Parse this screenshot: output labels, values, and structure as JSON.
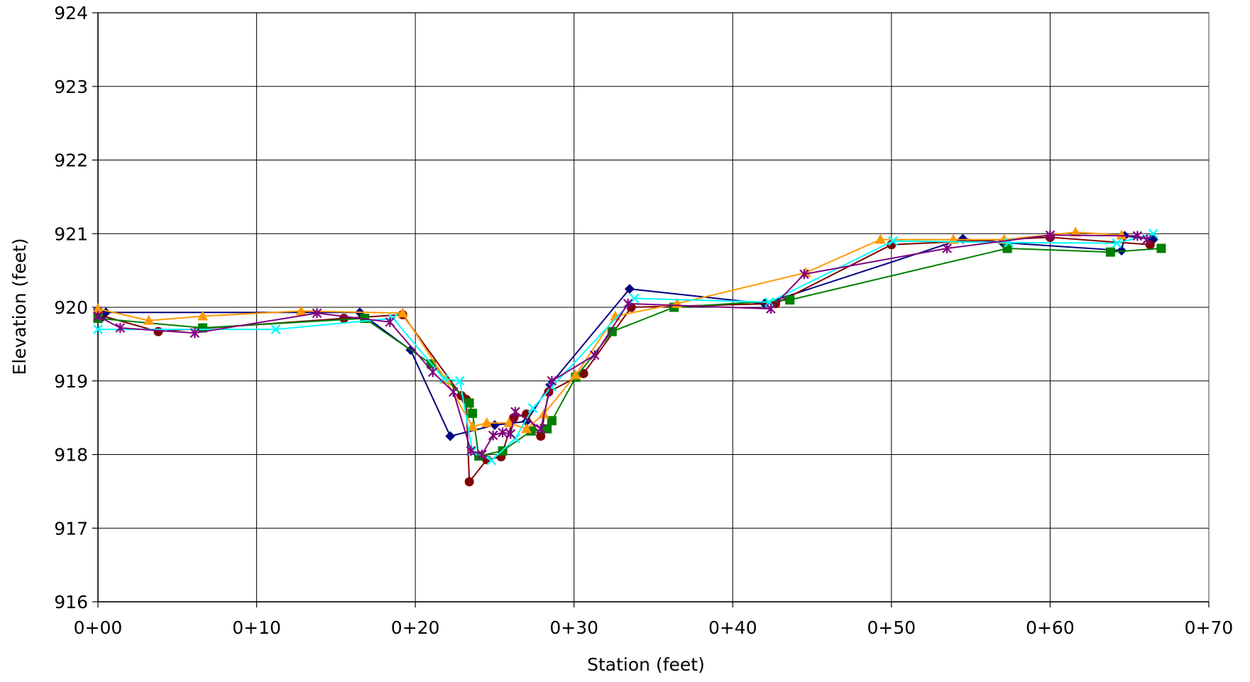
{
  "chart_data": {
    "type": "line",
    "title": "",
    "xlabel": "Station (feet)",
    "ylabel": "Elevation (feet)",
    "xlim": [
      0,
      70
    ],
    "ylim": [
      916,
      924
    ],
    "x_ticks": [
      0,
      10,
      20,
      30,
      40,
      50,
      60,
      70
    ],
    "x_tick_labels": [
      "0+00",
      "0+10",
      "0+20",
      "0+30",
      "0+40",
      "0+50",
      "0+60",
      "0+70"
    ],
    "y_ticks": [
      916,
      917,
      918,
      919,
      920,
      921,
      922,
      923,
      924
    ],
    "y_tick_labels": [
      "916",
      "917",
      "918",
      "919",
      "920",
      "921",
      "922",
      "923",
      "924"
    ],
    "grid": true,
    "legend": "none",
    "series": [
      {
        "color": "#000080",
        "marker": "diamond",
        "points": [
          [
            0,
            919.97
          ],
          [
            0.2,
            919.85
          ],
          [
            0.5,
            919.93
          ],
          [
            16.5,
            919.93
          ],
          [
            19.7,
            919.42
          ],
          [
            22.2,
            918.25
          ],
          [
            25,
            918.4
          ],
          [
            27,
            918.45
          ],
          [
            28.5,
            918.95
          ],
          [
            33.5,
            920.25
          ],
          [
            42,
            920.05
          ],
          [
            54.5,
            920.93
          ],
          [
            57,
            920.88
          ],
          [
            64.5,
            920.77
          ],
          [
            64.7,
            920.97
          ],
          [
            66.5,
            920.92
          ]
        ]
      },
      {
        "color": "#800000",
        "marker": "circle",
        "points": [
          [
            0,
            919.9
          ],
          [
            3.8,
            919.67
          ],
          [
            15.5,
            919.85
          ],
          [
            19.2,
            919.9
          ],
          [
            22.9,
            918.8
          ],
          [
            23.2,
            918.75
          ],
          [
            23.4,
            917.63
          ],
          [
            24.5,
            917.93
          ],
          [
            25.4,
            917.97
          ],
          [
            26.2,
            918.5
          ],
          [
            27,
            918.55
          ],
          [
            27.9,
            918.25
          ],
          [
            28.4,
            918.85
          ],
          [
            30.6,
            919.1
          ],
          [
            33.6,
            920.0
          ],
          [
            42.7,
            920.05
          ],
          [
            50,
            920.85
          ],
          [
            60,
            920.95
          ],
          [
            66.3,
            920.85
          ]
        ]
      },
      {
        "color": "#008000",
        "marker": "square",
        "points": [
          [
            0,
            919.85
          ],
          [
            6.6,
            919.72
          ],
          [
            16.8,
            919.85
          ],
          [
            21,
            919.23
          ],
          [
            23.4,
            918.7
          ],
          [
            23.6,
            918.56
          ],
          [
            24,
            917.98
          ],
          [
            25.5,
            918.05
          ],
          [
            27.3,
            918.32
          ],
          [
            28.3,
            918.35
          ],
          [
            28.6,
            918.46
          ],
          [
            30.1,
            919.05
          ],
          [
            32.4,
            919.67
          ],
          [
            36.3,
            920.0
          ],
          [
            43.6,
            920.1
          ],
          [
            57.3,
            920.8
          ],
          [
            63.8,
            920.75
          ],
          [
            67,
            920.8
          ]
        ]
      },
      {
        "color": "#FF9900",
        "marker": "triangle",
        "points": [
          [
            0,
            919.98
          ],
          [
            3.2,
            919.82
          ],
          [
            6.6,
            919.88
          ],
          [
            12.8,
            919.95
          ],
          [
            19.2,
            919.92
          ],
          [
            21.9,
            919.02
          ],
          [
            23.6,
            918.38
          ],
          [
            24.5,
            918.43
          ],
          [
            25.9,
            918.43
          ],
          [
            27,
            918.35
          ],
          [
            28.1,
            918.55
          ],
          [
            30.1,
            919.08
          ],
          [
            32.6,
            919.88
          ],
          [
            36.5,
            920.05
          ],
          [
            44.6,
            920.47
          ],
          [
            49.3,
            920.92
          ],
          [
            53.9,
            920.92
          ],
          [
            57.1,
            920.92
          ],
          [
            61.6,
            921.02
          ],
          [
            64.5,
            920.98
          ]
        ]
      },
      {
        "color": "#00FFFF",
        "marker": "x",
        "points": [
          [
            0,
            919.7
          ],
          [
            11.2,
            919.7
          ],
          [
            18.6,
            919.85
          ],
          [
            21.8,
            919.03
          ],
          [
            22.8,
            919.0
          ],
          [
            23.6,
            918.05
          ],
          [
            24.8,
            917.92
          ],
          [
            26.3,
            918.22
          ],
          [
            27.4,
            918.63
          ],
          [
            28.6,
            918.92
          ],
          [
            33.8,
            920.12
          ],
          [
            42.3,
            920.07
          ],
          [
            50.1,
            920.9
          ],
          [
            57.4,
            920.88
          ],
          [
            64.2,
            920.87
          ],
          [
            66.5,
            921.0
          ]
        ]
      },
      {
        "color": "#800080",
        "marker": "star",
        "points": [
          [
            0,
            919.88
          ],
          [
            1.4,
            919.72
          ],
          [
            6.1,
            919.65
          ],
          [
            13.8,
            919.92
          ],
          [
            18.4,
            919.8
          ],
          [
            21.1,
            919.12
          ],
          [
            22.4,
            918.85
          ],
          [
            23.5,
            918.05
          ],
          [
            24.2,
            918.0
          ],
          [
            24.9,
            918.26
          ],
          [
            25.5,
            918.3
          ],
          [
            26,
            918.28
          ],
          [
            26.3,
            918.58
          ],
          [
            27.9,
            918.35
          ],
          [
            28.6,
            919.0
          ],
          [
            31.3,
            919.35
          ],
          [
            33.4,
            920.05
          ],
          [
            42.4,
            919.98
          ],
          [
            44.5,
            920.45
          ],
          [
            53.5,
            920.8
          ],
          [
            60,
            920.98
          ],
          [
            65.5,
            920.97
          ],
          [
            66.1,
            920.92
          ]
        ]
      }
    ]
  }
}
